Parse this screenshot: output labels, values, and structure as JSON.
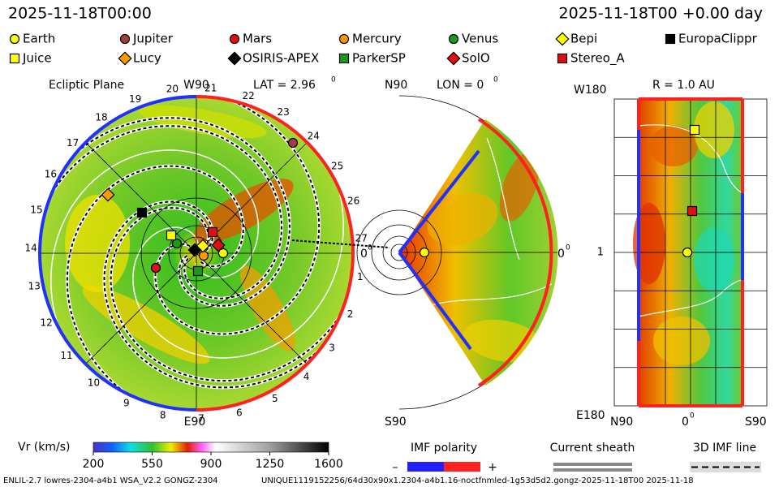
{
  "header": {
    "time": "2025-11-18T00:00",
    "offset": "2025-11-18T00 +0.00 day"
  },
  "legend": [
    {
      "name": "Earth",
      "shape": "circle",
      "color": "#ffff00"
    },
    {
      "name": "Jupiter",
      "shape": "circle",
      "color": "#a0403a"
    },
    {
      "name": "Mars",
      "shape": "circle",
      "color": "#e01010"
    },
    {
      "name": "Mercury",
      "shape": "circle",
      "color": "#ff9a00"
    },
    {
      "name": "Venus",
      "shape": "circle",
      "color": "#1a9a1a"
    },
    {
      "name": "Bepi",
      "shape": "diamond",
      "color": "#ffff00"
    },
    {
      "name": "EuropaClippr",
      "shape": "square",
      "color": "#000000"
    },
    {
      "name": "Juice",
      "shape": "square",
      "color": "#ffff00"
    },
    {
      "name": "Lucy",
      "shape": "diamond",
      "color": "#ff9a00"
    },
    {
      "name": "OSIRIS-APEX",
      "shape": "diamond",
      "color": "#000000"
    },
    {
      "name": "ParkerSP",
      "shape": "square",
      "color": "#1a9a1a"
    },
    {
      "name": "SolO",
      "shape": "diamond",
      "color": "#e01010"
    },
    {
      "name": "Stereo_A",
      "shape": "square",
      "color": "#e01010"
    }
  ],
  "ecliptic": {
    "title": "Ecliptic Plane",
    "top": "W90",
    "lat": "LAT = 2.96",
    "lat_unit": "0",
    "bottom": "E90",
    "right": "0",
    "right_unit": "0",
    "longitudes": [
      "1",
      "2",
      "3",
      "4",
      "5",
      "6",
      "7",
      "8",
      "9",
      "10",
      "11",
      "12",
      "13",
      "14",
      "15",
      "16",
      "17",
      "18",
      "19",
      "20",
      "21",
      "22",
      "23",
      "24",
      "25",
      "26",
      "27"
    ]
  },
  "meridional": {
    "top": "N90",
    "lon": "LON = 0",
    "lon_unit": "0",
    "right": "0",
    "right_unit": "0",
    "bottom": "S90"
  },
  "sphere": {
    "top_left": "W180",
    "title": "R = 1.0 AU",
    "left": "1",
    "bottom_left": "E180",
    "x_left": "N90",
    "x_mid": "0",
    "x_mid_unit": "0",
    "x_right": "S90"
  },
  "colorbar": {
    "label": "Vr (km/s)",
    "range": [
      200,
      1600
    ],
    "ticks": [
      200,
      550,
      900,
      1250,
      1600
    ]
  },
  "imf": {
    "title": "IMF polarity",
    "minus": "–",
    "plus": "+"
  },
  "sheath": {
    "title": "Current sheath"
  },
  "imf_line": {
    "title": "3D IMF line"
  },
  "footer": {
    "model": "ENLIL-2.7 lowres-2304-a4b1 WSA_V2.2 GONGZ-2304",
    "run": "UNIQUE1119152256/64d30x90x1.2304-a4b1.16-noctfnmled-1g53d5d2.gongz-2025-11-18T00 2025-11-18"
  }
}
